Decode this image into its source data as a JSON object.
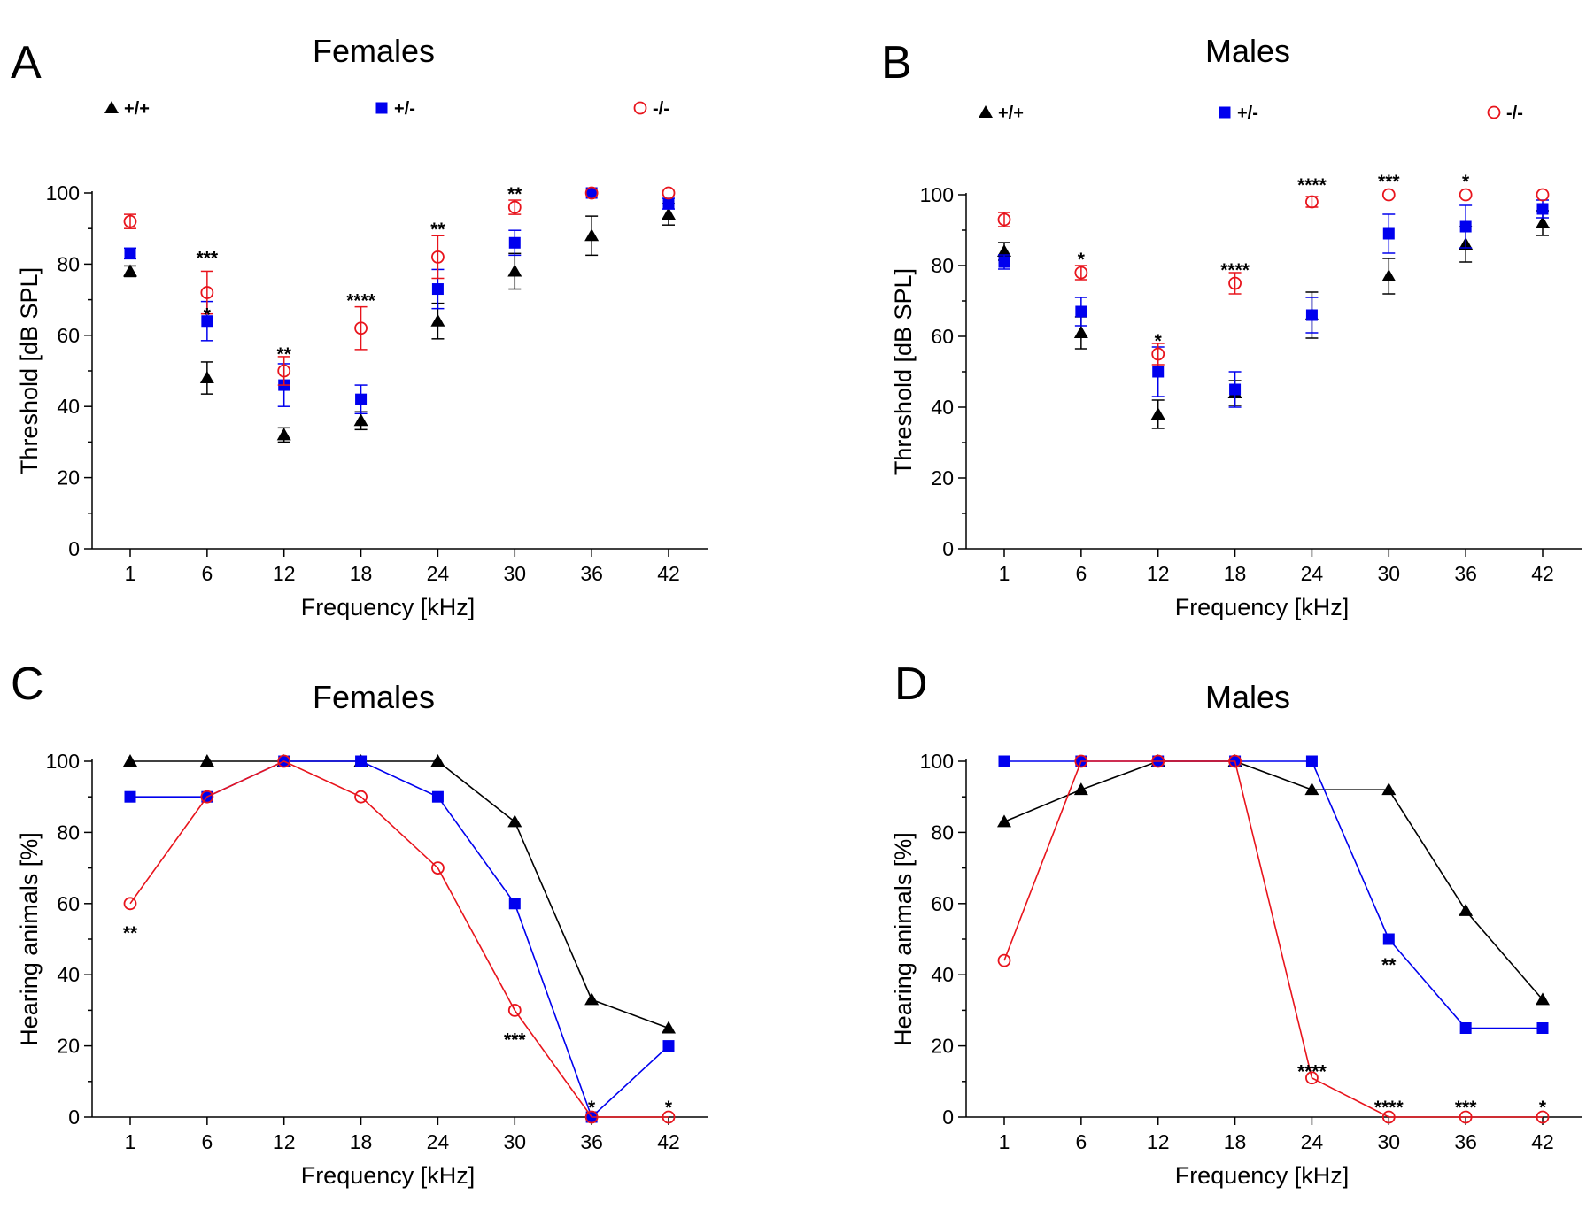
{
  "figure": {
    "colors": {
      "wt": "#000000",
      "het": "#0000ee",
      "ko": "#e8141c"
    },
    "legend_labels": [
      "+/+",
      "+/-",
      "-/-"
    ]
  },
  "chart_data": [
    {
      "panel": "A",
      "title": "Females",
      "type": "scatter",
      "xlabel": "Frequency [kHz]",
      "ylabel": "Threshold [dB SPL]",
      "categories": [
        "1",
        "6",
        "12",
        "18",
        "24",
        "30",
        "36",
        "42"
      ],
      "ylim": [
        0,
        100
      ],
      "yticks": [
        0,
        20,
        40,
        60,
        80,
        100
      ],
      "series": [
        {
          "name": "+/+",
          "marker": "triangle",
          "color": "#000000",
          "values": [
            78,
            48,
            32,
            36,
            64,
            78,
            88,
            94
          ],
          "err": [
            1.5,
            4.5,
            2,
            2.5,
            5,
            5,
            5.5,
            3
          ]
        },
        {
          "name": "+/-",
          "marker": "square",
          "color": "#0000ee",
          "values": [
            83,
            64,
            46,
            42,
            73,
            86,
            100,
            97
          ],
          "err": [
            1.5,
            5.5,
            6,
            4,
            5.5,
            3.5,
            0,
            1.5
          ]
        },
        {
          "name": "-/-",
          "marker": "circle",
          "color": "#e8141c",
          "values": [
            92,
            72,
            50,
            62,
            82,
            96,
            100,
            100
          ],
          "err": [
            2,
            6,
            4,
            6,
            6,
            2,
            0,
            0
          ]
        }
      ],
      "annotations": [
        {
          "x": "6",
          "y": 82,
          "text": "***"
        },
        {
          "x": "6",
          "y": 66,
          "text": "*"
        },
        {
          "x": "12",
          "y": 55,
          "text": "**"
        },
        {
          "x": "18",
          "y": 70,
          "text": "****"
        },
        {
          "x": "24",
          "y": 90,
          "text": "**"
        },
        {
          "x": "30",
          "y": 100,
          "text": "**"
        }
      ]
    },
    {
      "panel": "B",
      "title": "Males",
      "type": "scatter",
      "xlabel": "Frequency [kHz]",
      "ylabel": "Threshold [dB SPL]",
      "categories": [
        "1",
        "6",
        "12",
        "18",
        "24",
        "30",
        "36",
        "42"
      ],
      "ylim": [
        0,
        100
      ],
      "yticks": [
        0,
        20,
        40,
        60,
        80,
        100
      ],
      "series": [
        {
          "name": "+/+",
          "marker": "triangle",
          "color": "#000000",
          "values": [
            84,
            61,
            38,
            44,
            66,
            77,
            86,
            92
          ],
          "err": [
            2.5,
            4.5,
            4,
            3.5,
            6.5,
            5,
            5,
            3.5
          ]
        },
        {
          "name": "+/-",
          "marker": "square",
          "color": "#0000ee",
          "values": [
            81,
            67,
            50,
            45,
            66,
            89,
            91,
            96
          ],
          "err": [
            2,
            4,
            7,
            5,
            5,
            5.5,
            6,
            2.5
          ]
        },
        {
          "name": "-/-",
          "marker": "circle",
          "color": "#e8141c",
          "values": [
            93,
            78,
            55,
            75,
            98,
            100,
            100,
            100
          ],
          "err": [
            2,
            2,
            3,
            3,
            1.5,
            0,
            0,
            0
          ]
        }
      ],
      "annotations": [
        {
          "x": "6",
          "y": 82,
          "text": "*"
        },
        {
          "x": "12",
          "y": 59,
          "text": "*"
        },
        {
          "x": "18",
          "y": 79,
          "text": "****"
        },
        {
          "x": "24",
          "y": 103,
          "text": "****"
        },
        {
          "x": "30",
          "y": 104,
          "text": "***"
        },
        {
          "x": "36",
          "y": 104,
          "text": "*"
        }
      ]
    },
    {
      "panel": "C",
      "title": "Females",
      "type": "line",
      "xlabel": "Frequency [kHz]",
      "ylabel": "Hearing animals [%]",
      "categories": [
        "1",
        "6",
        "12",
        "18",
        "24",
        "30",
        "36",
        "42"
      ],
      "ylim": [
        0,
        100
      ],
      "yticks": [
        0,
        20,
        40,
        60,
        80,
        100
      ],
      "series": [
        {
          "name": "+/+",
          "marker": "triangle",
          "color": "#000000",
          "values": [
            100,
            100,
            100,
            100,
            100,
            83,
            33,
            25
          ]
        },
        {
          "name": "+/-",
          "marker": "square",
          "color": "#0000ee",
          "values": [
            90,
            90,
            100,
            100,
            90,
            60,
            0,
            20
          ]
        },
        {
          "name": "-/-",
          "marker": "circle",
          "color": "#e8141c",
          "values": [
            60,
            90,
            100,
            90,
            70,
            30,
            0,
            0
          ]
        }
      ],
      "annotations": [
        {
          "x": "1",
          "y": 52,
          "text": "**"
        },
        {
          "x": "30",
          "y": 22,
          "text": "***"
        },
        {
          "x": "36",
          "y": 3,
          "text": "*"
        },
        {
          "x": "42",
          "y": 3,
          "text": "*"
        }
      ]
    },
    {
      "panel": "D",
      "title": "Males",
      "type": "line",
      "xlabel": "Frequency [kHz]",
      "ylabel": "Hearing animals [%]",
      "categories": [
        "1",
        "6",
        "12",
        "18",
        "24",
        "30",
        "36",
        "42"
      ],
      "ylim": [
        0,
        100
      ],
      "yticks": [
        0,
        20,
        40,
        60,
        80,
        100
      ],
      "series": [
        {
          "name": "+/+",
          "marker": "triangle",
          "color": "#000000",
          "values": [
            83,
            92,
            100,
            100,
            92,
            92,
            58,
            33
          ]
        },
        {
          "name": "+/-",
          "marker": "square",
          "color": "#0000ee",
          "values": [
            100,
            100,
            100,
            100,
            100,
            50,
            25,
            25
          ]
        },
        {
          "name": "-/-",
          "marker": "circle",
          "color": "#e8141c",
          "values": [
            44,
            100,
            100,
            100,
            11,
            0,
            0,
            0
          ]
        }
      ],
      "annotations": [
        {
          "x": "30",
          "y": 43,
          "text": "**"
        },
        {
          "x": "24",
          "y": 13,
          "text": "****"
        },
        {
          "x": "30",
          "y": 3,
          "text": "****"
        },
        {
          "x": "36",
          "y": 3,
          "text": "***"
        },
        {
          "x": "42",
          "y": 3,
          "text": "*"
        }
      ]
    }
  ]
}
